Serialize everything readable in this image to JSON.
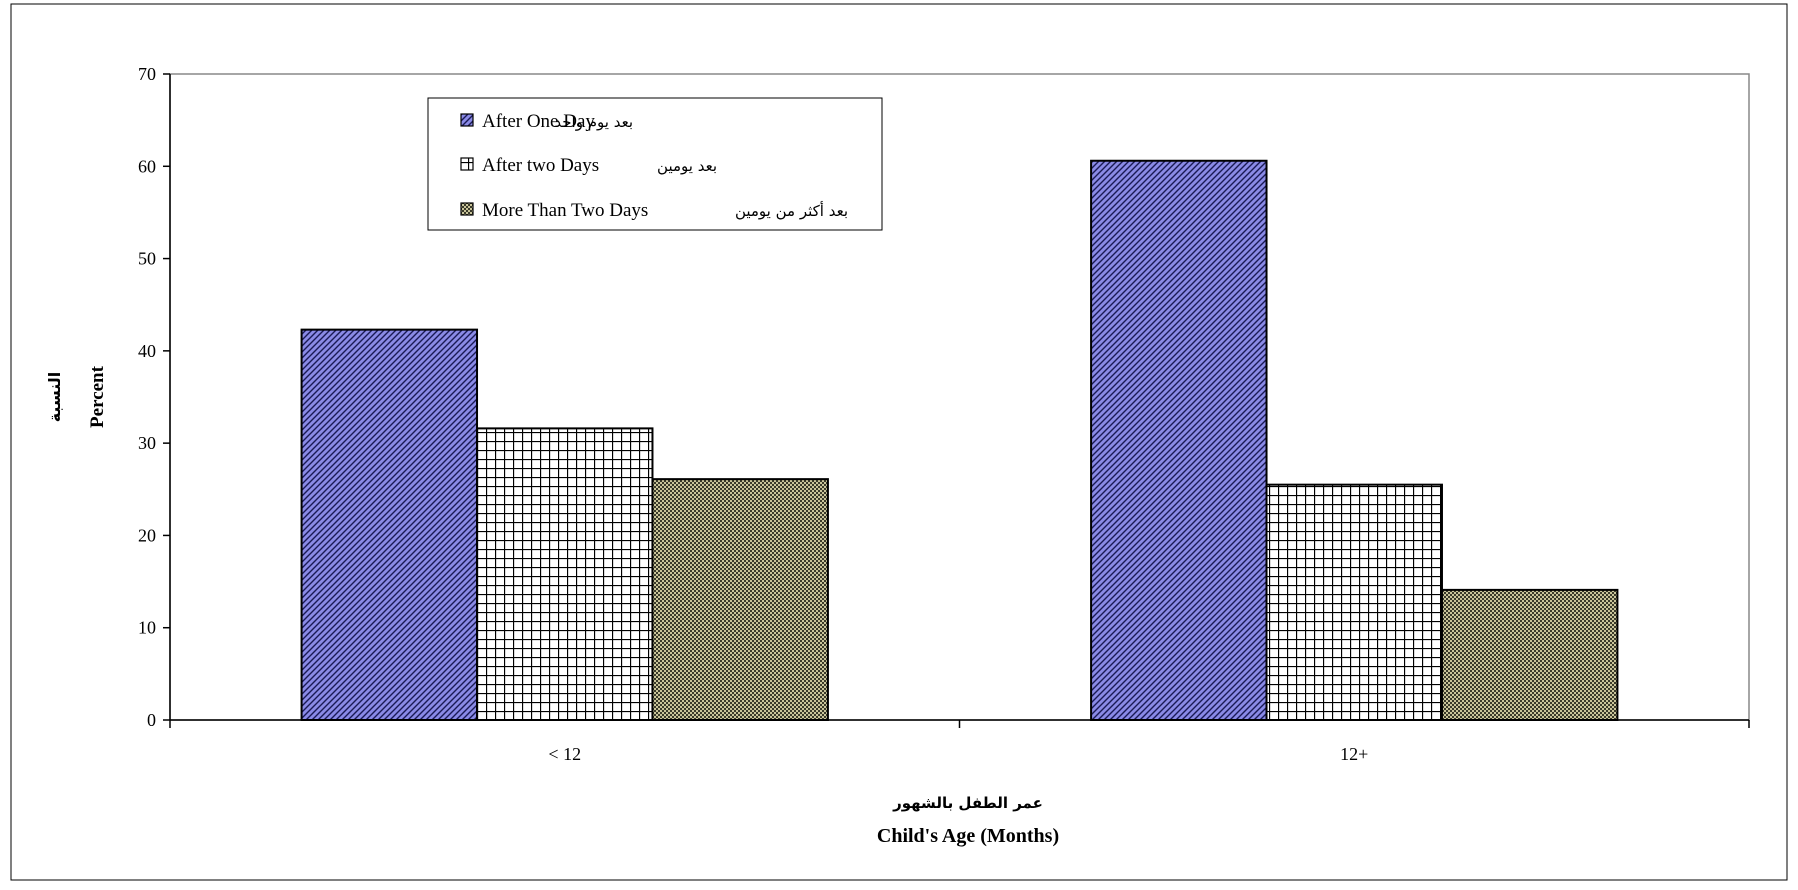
{
  "chart_data": {
    "type": "bar",
    "categories": [
      "< 12",
      "12+"
    ],
    "series": [
      {
        "name": "After One Day",
        "name_ar": "بعد يوم واحد",
        "values": [
          42.3,
          60.6
        ],
        "pattern": "diagonal",
        "color": "#8a8ae6"
      },
      {
        "name": "After two Days",
        "name_ar": "بعد يومين",
        "values": [
          31.6,
          25.5
        ],
        "pattern": "grid",
        "color": "#ffffff"
      },
      {
        "name": "More Than Two Days",
        "name_ar": "بعد أكثر من يومين",
        "values": [
          26.1,
          14.1
        ],
        "pattern": "checker",
        "color": "#b8b38a"
      }
    ],
    "ylim": [
      0,
      70
    ],
    "ytick_step": 10,
    "y_ticks": [
      "0",
      "10",
      "20",
      "30",
      "40",
      "50",
      "60",
      "70"
    ],
    "ylabel": "Percent",
    "ylabel_ar": "النسبة",
    "xlabel": "Child's Age (Months)",
    "xlabel_ar": "عمر الطفل بالشهور",
    "grid": false,
    "legend_position": "top-left"
  }
}
